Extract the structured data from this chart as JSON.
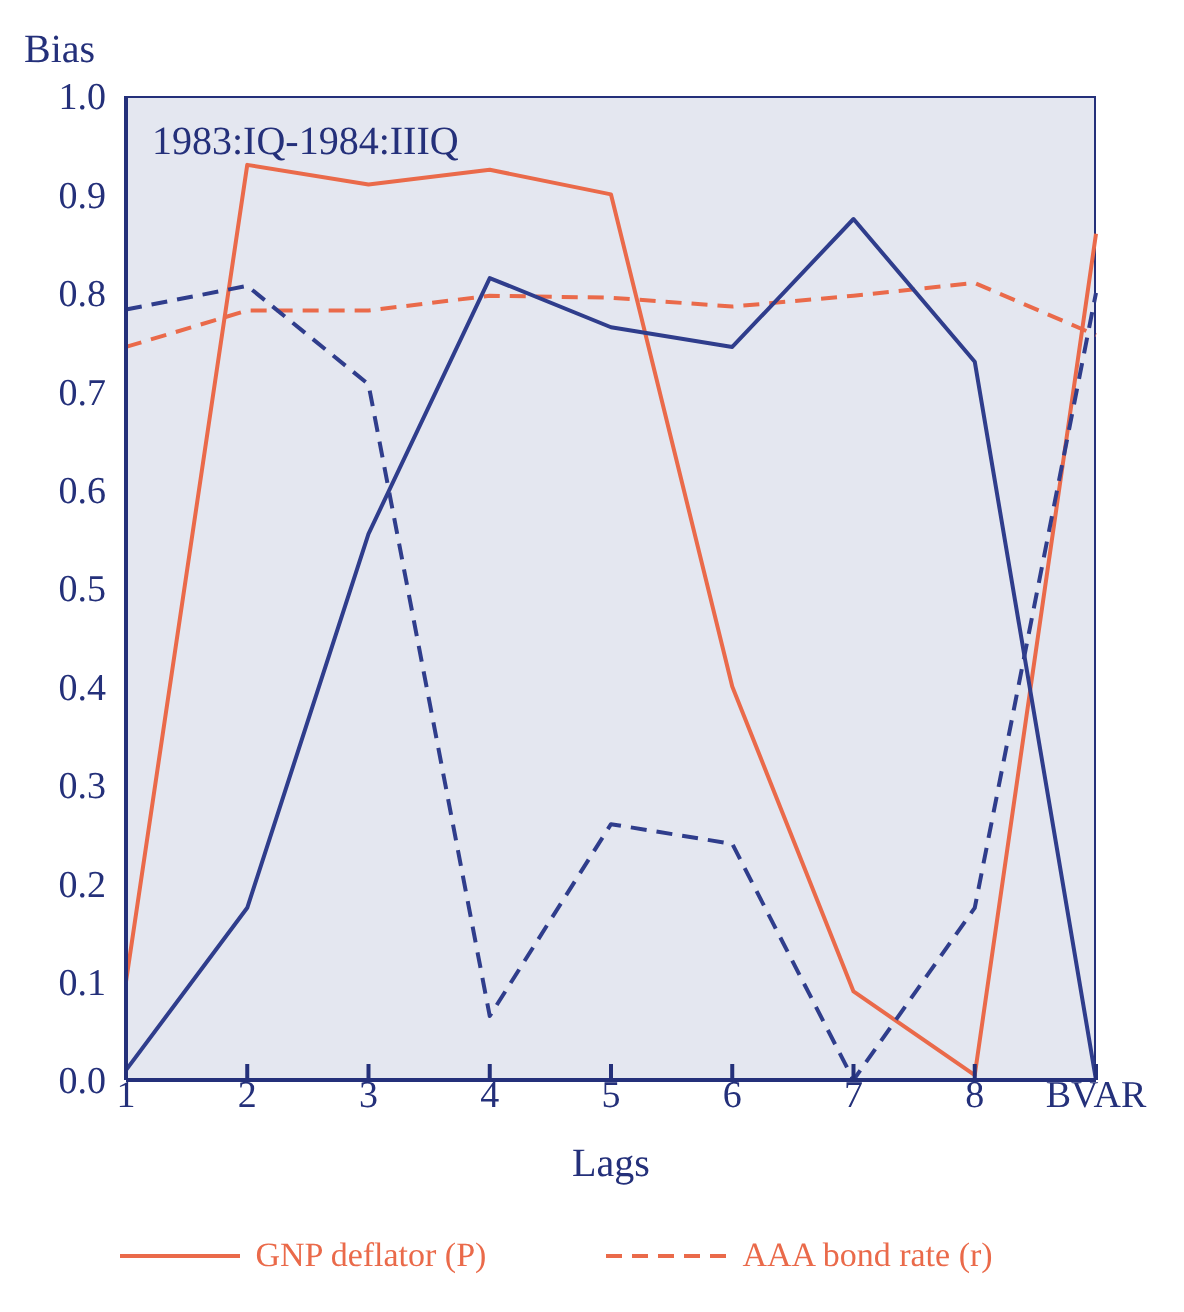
{
  "chart_data": {
    "type": "line",
    "ylabel": "Bias",
    "xlabel": "Lags",
    "categories": [
      "1",
      "2",
      "3",
      "4",
      "5",
      "6",
      "7",
      "8",
      "BVAR"
    ],
    "series": [
      {
        "name": "GNP deflator (P)",
        "color": "#ea6a4a",
        "line_style": "solid",
        "values": [
          0.1,
          0.93,
          0.91,
          0.925,
          0.9,
          0.4,
          0.09,
          0.005,
          0.86
        ]
      },
      {
        "name": "AAA bond rate (r)",
        "color": "#ea6a4a",
        "line_style": "dashed",
        "values": [
          0.745,
          0.782,
          0.782,
          0.797,
          0.795,
          0.786,
          0.797,
          0.81,
          0.757
        ]
      },
      {
        "color": "#2f3d8c",
        "line_style": "solid",
        "values": [
          0.01,
          0.175,
          0.555,
          0.815,
          0.765,
          0.745,
          0.875,
          0.73,
          0.0
        ]
      },
      {
        "color": "#2f3d8c",
        "line_style": "dashed",
        "values": [
          0.783,
          0.807,
          0.707,
          0.065,
          0.26,
          0.24,
          0.0,
          0.175,
          0.8
        ]
      }
    ],
    "ylim": [
      0,
      1
    ],
    "yticks": [
      {
        "value": 0,
        "label": "0.0"
      },
      0.1,
      0.2,
      0.3,
      0.4,
      0.5,
      0.6,
      0.7,
      0.8,
      0.9,
      {
        "value": 1,
        "label": "1.0"
      }
    ],
    "annotations": [
      "1983:IQ-1984:IIIQ"
    ],
    "grid": false,
    "legend": "bottom"
  }
}
